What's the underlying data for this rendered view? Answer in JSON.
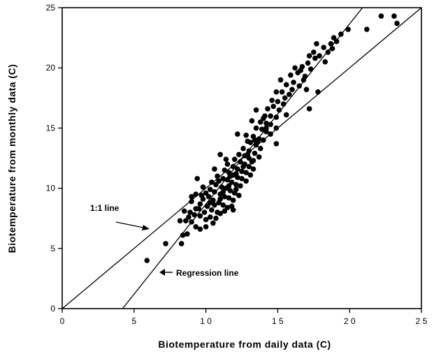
{
  "chart_data": {
    "type": "scatter",
    "xlabel": "Biotemperature from daily data (C)",
    "ylabel": "Biotemperature from monthly data (C)",
    "xlim": [
      0,
      25
    ],
    "ylim": [
      0,
      25
    ],
    "xticks": [
      0,
      5,
      10,
      15,
      20,
      25
    ],
    "yticks": [
      0,
      5,
      10,
      15,
      20,
      25
    ],
    "xtick_labels": [
      "0",
      "5",
      "1 0",
      "1 5",
      "2 0",
      "2 5"
    ],
    "ytick_labels": [
      "0",
      "5",
      "10",
      "15",
      "20",
      "25"
    ],
    "grid": false,
    "series": [
      {
        "points": [
          [
            5.9,
            4.0
          ],
          [
            7.2,
            5.4
          ],
          [
            8.3,
            5.4
          ],
          [
            8.4,
            6.1
          ],
          [
            8.7,
            6.2
          ],
          [
            8.2,
            7.3
          ],
          [
            8.6,
            7.3
          ],
          [
            9.0,
            7.2
          ],
          [
            9.3,
            6.8
          ],
          [
            9.6,
            6.6
          ],
          [
            10.0,
            6.8
          ],
          [
            10.5,
            7.1
          ],
          [
            8.5,
            8.1
          ],
          [
            8.9,
            8.0
          ],
          [
            9.2,
            7.8
          ],
          [
            9.6,
            7.7
          ],
          [
            9.3,
            8.3
          ],
          [
            9.9,
            8.0
          ],
          [
            10.3,
            7.6
          ],
          [
            10.7,
            7.5
          ],
          [
            9.0,
            8.9
          ],
          [
            9.6,
            8.7
          ],
          [
            10.1,
            8.5
          ],
          [
            10.4,
            8.2
          ],
          [
            10.8,
            8.0
          ],
          [
            11.0,
            7.9
          ],
          [
            9.3,
            9.5
          ],
          [
            9.7,
            9.4
          ],
          [
            10.2,
            9.3
          ],
          [
            10.5,
            9.0
          ],
          [
            10.9,
            8.8
          ],
          [
            11.2,
            8.6
          ],
          [
            11.5,
            8.4
          ],
          [
            11.8,
            8.5
          ],
          [
            9.8,
            10.1
          ],
          [
            10.3,
            9.9
          ],
          [
            10.6,
            9.7
          ],
          [
            11.0,
            9.5
          ],
          [
            11.3,
            9.3
          ],
          [
            11.6,
            9.2
          ],
          [
            11.9,
            9.0
          ],
          [
            10.4,
            10.5
          ],
          [
            10.7,
            10.3
          ],
          [
            11.1,
            10.1
          ],
          [
            11.4,
            10.0
          ],
          [
            11.7,
            9.8
          ],
          [
            12.0,
            9.6
          ],
          [
            12.3,
            9.4
          ],
          [
            10.8,
            11.0
          ],
          [
            11.2,
            10.8
          ],
          [
            11.5,
            10.7
          ],
          [
            11.8,
            10.5
          ],
          [
            12.1,
            10.3
          ],
          [
            12.4,
            10.2
          ],
          [
            11.3,
            11.5
          ],
          [
            11.6,
            11.3
          ],
          [
            11.9,
            11.1
          ],
          [
            12.2,
            10.9
          ],
          [
            12.5,
            10.8
          ],
          [
            12.8,
            10.6
          ],
          [
            11.5,
            12.0
          ],
          [
            11.9,
            11.8
          ],
          [
            12.2,
            11.6
          ],
          [
            12.5,
            11.4
          ],
          [
            12.8,
            11.3
          ],
          [
            13.1,
            11.1
          ],
          [
            12.0,
            12.4
          ],
          [
            12.4,
            12.2
          ],
          [
            12.7,
            12.0
          ],
          [
            13.0,
            11.8
          ],
          [
            13.3,
            11.6
          ],
          [
            12.3,
            12.8
          ],
          [
            12.7,
            12.7
          ],
          [
            13.0,
            12.5
          ],
          [
            13.3,
            12.3
          ],
          [
            12.6,
            13.3
          ],
          [
            13.0,
            13.1
          ],
          [
            13.4,
            12.9
          ],
          [
            13.7,
            12.6
          ],
          [
            13.1,
            13.8
          ],
          [
            13.5,
            13.6
          ],
          [
            13.8,
            13.3
          ],
          [
            12.8,
            14.4
          ],
          [
            13.3,
            14.3
          ],
          [
            13.7,
            14.1
          ],
          [
            14.0,
            14.0
          ],
          [
            13.5,
            15.0
          ],
          [
            13.9,
            14.9
          ],
          [
            14.2,
            14.7
          ],
          [
            14.5,
            14.5
          ],
          [
            13.8,
            15.5
          ],
          [
            14.2,
            15.4
          ],
          [
            14.5,
            15.3
          ],
          [
            14.9,
            15.0
          ],
          [
            14.1,
            16.0
          ],
          [
            14.5,
            16.0
          ],
          [
            14.9,
            15.9
          ],
          [
            14.3,
            16.6
          ],
          [
            14.7,
            16.8
          ],
          [
            15.1,
            16.5
          ],
          [
            14.6,
            17.3
          ],
          [
            15.0,
            17.2
          ],
          [
            15.4,
            17.0
          ],
          [
            14.9,
            18.0
          ],
          [
            15.3,
            18.0
          ],
          [
            15.8,
            17.8
          ],
          [
            16.0,
            18.2
          ],
          [
            15.6,
            18.6
          ],
          [
            16.1,
            18.8
          ],
          [
            16.5,
            18.5
          ],
          [
            15.9,
            19.4
          ],
          [
            16.4,
            19.6
          ],
          [
            16.9,
            19.3
          ],
          [
            16.7,
            20.1
          ],
          [
            17.1,
            20.4
          ],
          [
            17.3,
            19.9
          ],
          [
            17.2,
            21.0
          ],
          [
            17.5,
            21.3
          ],
          [
            17.9,
            21.0
          ],
          [
            18.2,
            21.7
          ],
          [
            18.5,
            21.3
          ],
          [
            18.7,
            22.0
          ],
          [
            18.9,
            22.5
          ],
          [
            19.1,
            22.2
          ],
          [
            19.4,
            22.8
          ],
          [
            18.3,
            20.5
          ],
          [
            19.9,
            23.2
          ],
          [
            21.2,
            23.2
          ],
          [
            22.2,
            24.3
          ],
          [
            23.1,
            24.3
          ],
          [
            23.3,
            23.7
          ],
          [
            17.8,
            18.0
          ],
          [
            17.2,
            16.6
          ],
          [
            15.6,
            16.1
          ],
          [
            17.0,
            18.2
          ],
          [
            14.9,
            13.7
          ],
          [
            9.4,
            10.8
          ],
          [
            11.0,
            12.8
          ],
          [
            12.2,
            14.5
          ],
          [
            13.5,
            16.5
          ],
          [
            15.2,
            19.0
          ],
          [
            16.6,
            19.8
          ],
          [
            17.7,
            22.0
          ],
          [
            14.2,
            15.0
          ],
          [
            10.0,
            9.6
          ],
          [
            10.6,
            11.6
          ],
          [
            11.4,
            12.4
          ],
          [
            9.0,
            9.3
          ],
          [
            9.8,
            9.1
          ],
          [
            10.6,
            8.6
          ],
          [
            11.0,
            9.1
          ],
          [
            11.6,
            10.2
          ],
          [
            12.1,
            11.2
          ],
          [
            12.6,
            11.8
          ],
          [
            13.2,
            12.2
          ],
          [
            13.6,
            13.9
          ],
          [
            14.0,
            15.8
          ],
          [
            13.2,
            15.6
          ],
          [
            12.9,
            13.9
          ],
          [
            10.9,
            10.6
          ],
          [
            11.2,
            9.7
          ],
          [
            10.3,
            8.8
          ],
          [
            9.5,
            8.3
          ],
          [
            8.8,
            7.6
          ],
          [
            10.0,
            7.4
          ],
          [
            11.3,
            8.1
          ],
          [
            11.9,
            8.2
          ],
          [
            12.1,
            9.9
          ],
          [
            11.7,
            11.0
          ],
          [
            12.9,
            12.8
          ],
          [
            13.4,
            14.0
          ],
          [
            15.5,
            17.5
          ],
          [
            16.2,
            20.0
          ],
          [
            18.8,
            21.6
          ],
          [
            17.6,
            20.8
          ],
          [
            16.8,
            19.0
          ]
        ]
      }
    ],
    "lines": [
      {
        "label": "1:1 line",
        "from": [
          0,
          0
        ],
        "to": [
          25,
          25
        ]
      },
      {
        "label": "Regression line",
        "from": [
          4.2,
          0
        ],
        "to": [
          20.9,
          25
        ]
      }
    ],
    "annotations": [
      {
        "text": "1:1 line",
        "target": "1:1 line"
      },
      {
        "text": "Regression line",
        "target": "Regression line"
      }
    ]
  }
}
